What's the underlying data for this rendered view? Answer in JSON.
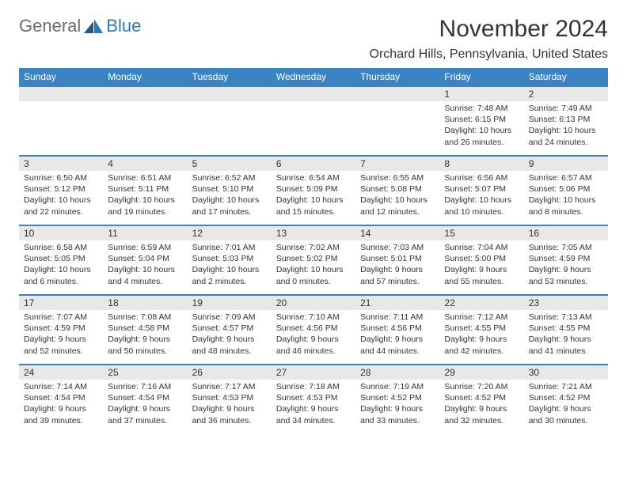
{
  "logo": {
    "general": "General",
    "blue": "Blue"
  },
  "title": "November 2024",
  "location": "Orchard Hills, Pennsylvania, United States",
  "colors": {
    "header_bg": "#3a84c4",
    "header_text": "#ffffff",
    "daynum_bg": "#e8e8e8",
    "border": "#3a84c4",
    "logo_general": "#6c6c6c",
    "logo_blue": "#2a7ab8"
  },
  "weekdays": [
    "Sunday",
    "Monday",
    "Tuesday",
    "Wednesday",
    "Thursday",
    "Friday",
    "Saturday"
  ],
  "weeks": [
    [
      {
        "num": "",
        "sunrise": "",
        "sunset": "",
        "daylight": ""
      },
      {
        "num": "",
        "sunrise": "",
        "sunset": "",
        "daylight": ""
      },
      {
        "num": "",
        "sunrise": "",
        "sunset": "",
        "daylight": ""
      },
      {
        "num": "",
        "sunrise": "",
        "sunset": "",
        "daylight": ""
      },
      {
        "num": "",
        "sunrise": "",
        "sunset": "",
        "daylight": ""
      },
      {
        "num": "1",
        "sunrise": "Sunrise: 7:48 AM",
        "sunset": "Sunset: 6:15 PM",
        "daylight": "Daylight: 10 hours and 26 minutes."
      },
      {
        "num": "2",
        "sunrise": "Sunrise: 7:49 AM",
        "sunset": "Sunset: 6:13 PM",
        "daylight": "Daylight: 10 hours and 24 minutes."
      }
    ],
    [
      {
        "num": "3",
        "sunrise": "Sunrise: 6:50 AM",
        "sunset": "Sunset: 5:12 PM",
        "daylight": "Daylight: 10 hours and 22 minutes."
      },
      {
        "num": "4",
        "sunrise": "Sunrise: 6:51 AM",
        "sunset": "Sunset: 5:11 PM",
        "daylight": "Daylight: 10 hours and 19 minutes."
      },
      {
        "num": "5",
        "sunrise": "Sunrise: 6:52 AM",
        "sunset": "Sunset: 5:10 PM",
        "daylight": "Daylight: 10 hours and 17 minutes."
      },
      {
        "num": "6",
        "sunrise": "Sunrise: 6:54 AM",
        "sunset": "Sunset: 5:09 PM",
        "daylight": "Daylight: 10 hours and 15 minutes."
      },
      {
        "num": "7",
        "sunrise": "Sunrise: 6:55 AM",
        "sunset": "Sunset: 5:08 PM",
        "daylight": "Daylight: 10 hours and 12 minutes."
      },
      {
        "num": "8",
        "sunrise": "Sunrise: 6:56 AM",
        "sunset": "Sunset: 5:07 PM",
        "daylight": "Daylight: 10 hours and 10 minutes."
      },
      {
        "num": "9",
        "sunrise": "Sunrise: 6:57 AM",
        "sunset": "Sunset: 5:06 PM",
        "daylight": "Daylight: 10 hours and 8 minutes."
      }
    ],
    [
      {
        "num": "10",
        "sunrise": "Sunrise: 6:58 AM",
        "sunset": "Sunset: 5:05 PM",
        "daylight": "Daylight: 10 hours and 6 minutes."
      },
      {
        "num": "11",
        "sunrise": "Sunrise: 6:59 AM",
        "sunset": "Sunset: 5:04 PM",
        "daylight": "Daylight: 10 hours and 4 minutes."
      },
      {
        "num": "12",
        "sunrise": "Sunrise: 7:01 AM",
        "sunset": "Sunset: 5:03 PM",
        "daylight": "Daylight: 10 hours and 2 minutes."
      },
      {
        "num": "13",
        "sunrise": "Sunrise: 7:02 AM",
        "sunset": "Sunset: 5:02 PM",
        "daylight": "Daylight: 10 hours and 0 minutes."
      },
      {
        "num": "14",
        "sunrise": "Sunrise: 7:03 AM",
        "sunset": "Sunset: 5:01 PM",
        "daylight": "Daylight: 9 hours and 57 minutes."
      },
      {
        "num": "15",
        "sunrise": "Sunrise: 7:04 AM",
        "sunset": "Sunset: 5:00 PM",
        "daylight": "Daylight: 9 hours and 55 minutes."
      },
      {
        "num": "16",
        "sunrise": "Sunrise: 7:05 AM",
        "sunset": "Sunset: 4:59 PM",
        "daylight": "Daylight: 9 hours and 53 minutes."
      }
    ],
    [
      {
        "num": "17",
        "sunrise": "Sunrise: 7:07 AM",
        "sunset": "Sunset: 4:59 PM",
        "daylight": "Daylight: 9 hours and 52 minutes."
      },
      {
        "num": "18",
        "sunrise": "Sunrise: 7:08 AM",
        "sunset": "Sunset: 4:58 PM",
        "daylight": "Daylight: 9 hours and 50 minutes."
      },
      {
        "num": "19",
        "sunrise": "Sunrise: 7:09 AM",
        "sunset": "Sunset: 4:57 PM",
        "daylight": "Daylight: 9 hours and 48 minutes."
      },
      {
        "num": "20",
        "sunrise": "Sunrise: 7:10 AM",
        "sunset": "Sunset: 4:56 PM",
        "daylight": "Daylight: 9 hours and 46 minutes."
      },
      {
        "num": "21",
        "sunrise": "Sunrise: 7:11 AM",
        "sunset": "Sunset: 4:56 PM",
        "daylight": "Daylight: 9 hours and 44 minutes."
      },
      {
        "num": "22",
        "sunrise": "Sunrise: 7:12 AM",
        "sunset": "Sunset: 4:55 PM",
        "daylight": "Daylight: 9 hours and 42 minutes."
      },
      {
        "num": "23",
        "sunrise": "Sunrise: 7:13 AM",
        "sunset": "Sunset: 4:55 PM",
        "daylight": "Daylight: 9 hours and 41 minutes."
      }
    ],
    [
      {
        "num": "24",
        "sunrise": "Sunrise: 7:14 AM",
        "sunset": "Sunset: 4:54 PM",
        "daylight": "Daylight: 9 hours and 39 minutes."
      },
      {
        "num": "25",
        "sunrise": "Sunrise: 7:16 AM",
        "sunset": "Sunset: 4:54 PM",
        "daylight": "Daylight: 9 hours and 37 minutes."
      },
      {
        "num": "26",
        "sunrise": "Sunrise: 7:17 AM",
        "sunset": "Sunset: 4:53 PM",
        "daylight": "Daylight: 9 hours and 36 minutes."
      },
      {
        "num": "27",
        "sunrise": "Sunrise: 7:18 AM",
        "sunset": "Sunset: 4:53 PM",
        "daylight": "Daylight: 9 hours and 34 minutes."
      },
      {
        "num": "28",
        "sunrise": "Sunrise: 7:19 AM",
        "sunset": "Sunset: 4:52 PM",
        "daylight": "Daylight: 9 hours and 33 minutes."
      },
      {
        "num": "29",
        "sunrise": "Sunrise: 7:20 AM",
        "sunset": "Sunset: 4:52 PM",
        "daylight": "Daylight: 9 hours and 32 minutes."
      },
      {
        "num": "30",
        "sunrise": "Sunrise: 7:21 AM",
        "sunset": "Sunset: 4:52 PM",
        "daylight": "Daylight: 9 hours and 30 minutes."
      }
    ]
  ]
}
